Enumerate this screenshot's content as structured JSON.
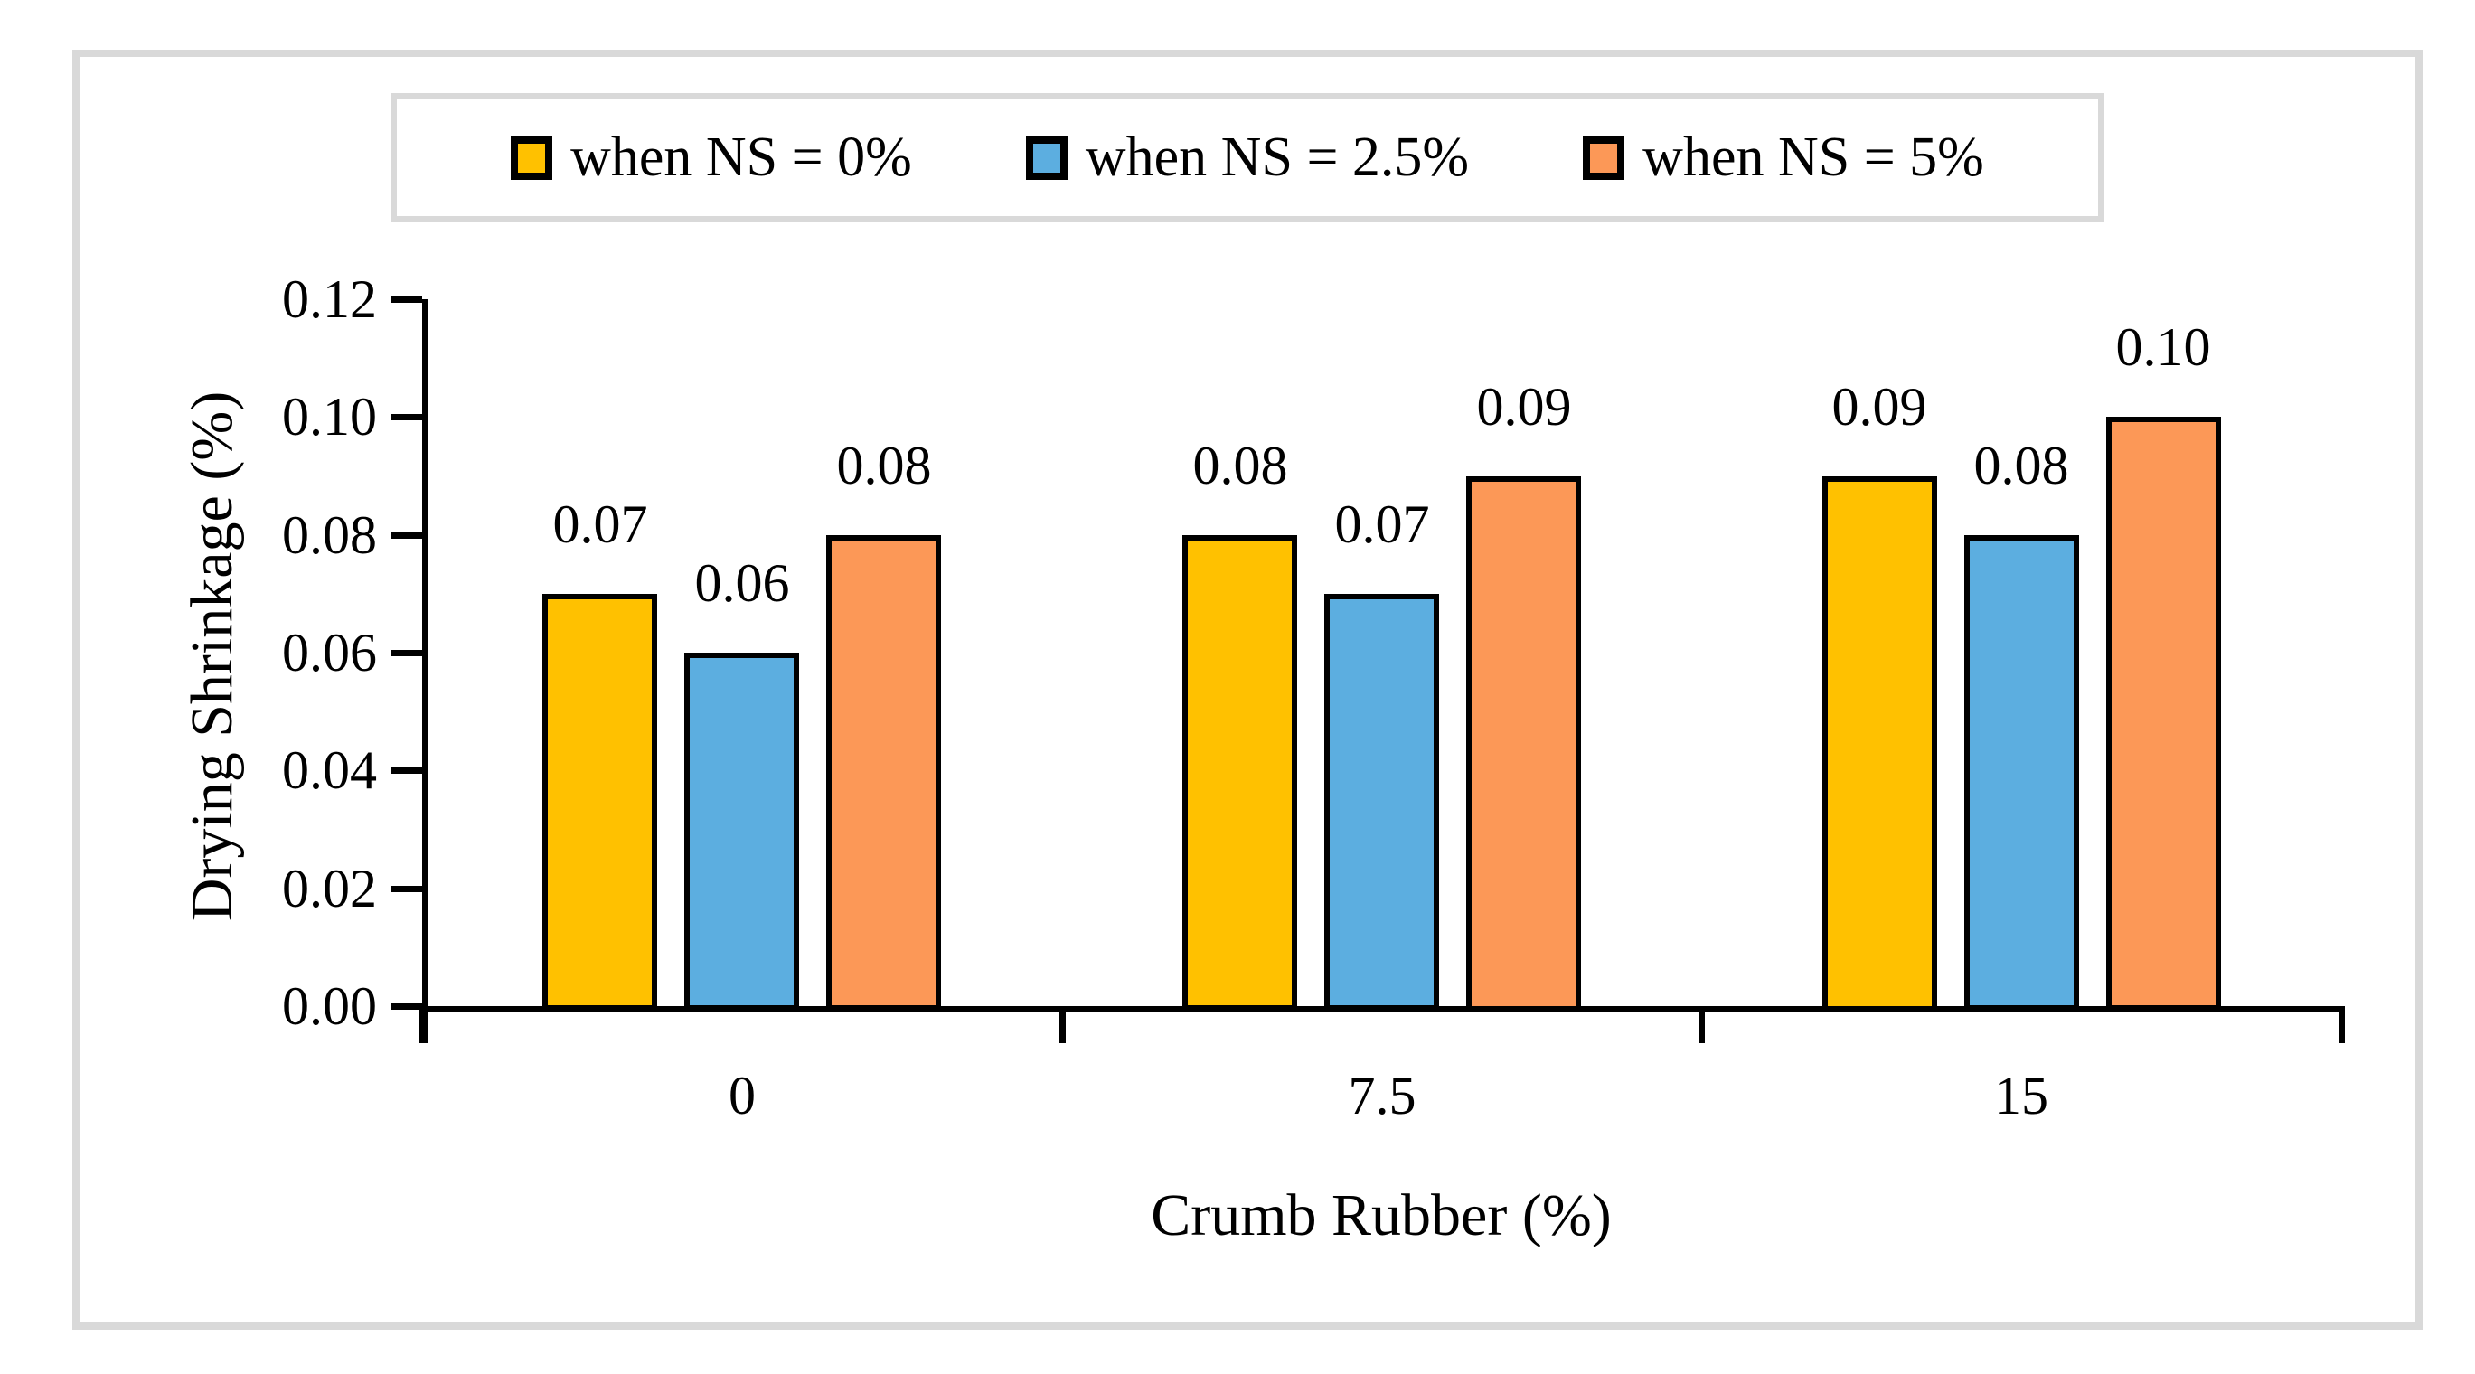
{
  "figure": {
    "background_color": "#FFFFFF",
    "border_color": "#D9D9D9"
  },
  "chart_data": {
    "type": "bar",
    "title": "",
    "categories": [
      "0",
      "7.5",
      "15"
    ],
    "series": [
      {
        "name": "when NS = 0%",
        "color": "#FFC100",
        "values": [
          0.07,
          0.08,
          0.09
        ]
      },
      {
        "name": "when NS = 2.5%",
        "color": "#5CAEE0",
        "values": [
          0.06,
          0.07,
          0.08
        ]
      },
      {
        "name": "when NS = 5%",
        "color": "#FC9857",
        "values": [
          0.08,
          0.09,
          0.1
        ]
      }
    ],
    "data_labels": [
      "0.07",
      "0.06",
      "0.08",
      "0.08",
      "0.07",
      "0.09",
      "0.09",
      "0.08",
      "0.10"
    ],
    "xlabel": "Crumb Rubber (%)",
    "ylabel": "Drying Shrinkage (%)",
    "ylim": [
      0,
      0.12
    ],
    "ytick_step": 0.02,
    "ytick_labels": [
      "0.00",
      "0.02",
      "0.04",
      "0.06",
      "0.08",
      "0.10",
      "0.12"
    ],
    "ytick_format_decimals": 2,
    "legend_position": "top",
    "grid": false,
    "bar_border_color": "#000000",
    "axis_color": "#000000"
  }
}
